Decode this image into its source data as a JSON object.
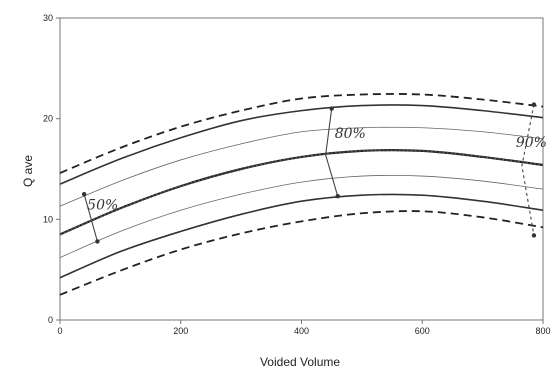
{
  "chart_data": {
    "type": "line",
    "title": "",
    "xlabel": "Voided Volume",
    "ylabel": "Q ave",
    "xlim": [
      0,
      800
    ],
    "ylim": [
      0,
      30
    ],
    "x_ticks": [
      0,
      200,
      400,
      600,
      800
    ],
    "y_ticks": [
      0,
      10,
      20,
      30
    ],
    "x_tick_labels": [
      "0",
      "200",
      "400",
      "600",
      "800"
    ],
    "y_tick_labels": [
      "0",
      "10",
      "20",
      "30"
    ],
    "grid": false,
    "series": [
      {
        "style": "dashed-thick",
        "points": [
          [
            0,
            14.6
          ],
          [
            100,
            17.1
          ],
          [
            200,
            19.2
          ],
          [
            300,
            20.8
          ],
          [
            400,
            22.0
          ],
          [
            500,
            22.4
          ],
          [
            600,
            22.4
          ],
          [
            700,
            21.9
          ],
          [
            800,
            21.2
          ]
        ]
      },
      {
        "style": "solid-thick",
        "points": [
          [
            0,
            13.5
          ],
          [
            100,
            16.0
          ],
          [
            200,
            18.1
          ],
          [
            300,
            19.8
          ],
          [
            400,
            20.8
          ],
          [
            500,
            21.3
          ],
          [
            600,
            21.3
          ],
          [
            700,
            20.8
          ],
          [
            800,
            20.1
          ]
        ]
      },
      {
        "style": "solid-thin",
        "points": [
          [
            0,
            11.3
          ],
          [
            100,
            13.8
          ],
          [
            200,
            15.9
          ],
          [
            300,
            17.5
          ],
          [
            400,
            18.7
          ],
          [
            500,
            19.1
          ],
          [
            600,
            19.1
          ],
          [
            700,
            18.7
          ],
          [
            800,
            18.0
          ]
        ]
      },
      {
        "style": "mixed-thick",
        "points": [
          [
            0,
            8.5
          ],
          [
            100,
            11.1
          ],
          [
            200,
            13.3
          ],
          [
            300,
            15.0
          ],
          [
            400,
            16.2
          ],
          [
            500,
            16.8
          ],
          [
            600,
            16.8
          ],
          [
            700,
            16.2
          ],
          [
            800,
            15.4
          ]
        ]
      },
      {
        "style": "solid-thin",
        "points": [
          [
            0,
            6.2
          ],
          [
            100,
            8.8
          ],
          [
            200,
            10.9
          ],
          [
            300,
            12.5
          ],
          [
            400,
            13.7
          ],
          [
            500,
            14.3
          ],
          [
            600,
            14.3
          ],
          [
            700,
            13.8
          ],
          [
            800,
            13.0
          ]
        ]
      },
      {
        "style": "solid-thick",
        "points": [
          [
            0,
            4.2
          ],
          [
            100,
            6.8
          ],
          [
            200,
            8.8
          ],
          [
            300,
            10.5
          ],
          [
            400,
            11.8
          ],
          [
            500,
            12.4
          ],
          [
            600,
            12.4
          ],
          [
            700,
            11.8
          ],
          [
            800,
            10.9
          ]
        ]
      },
      {
        "style": "dashed-thick",
        "points": [
          [
            0,
            2.5
          ],
          [
            100,
            4.9
          ],
          [
            200,
            7.0
          ],
          [
            300,
            8.6
          ],
          [
            400,
            9.8
          ],
          [
            500,
            10.6
          ],
          [
            600,
            10.8
          ],
          [
            700,
            10.2
          ],
          [
            800,
            9.2
          ]
        ]
      }
    ],
    "annotations": [
      {
        "text": "50%",
        "at": [
          45,
          11.0
        ],
        "bracket": [
          [
            40,
            12.5
          ],
          [
            62,
            7.8
          ]
        ]
      },
      {
        "text": "80%",
        "at": [
          455,
          18.1
        ],
        "bracket": [
          [
            450,
            21.0
          ],
          [
            440,
            16.4
          ],
          [
            460,
            12.3
          ]
        ]
      },
      {
        "text": "90%",
        "at": [
          755,
          17.2
        ],
        "bracket": [
          [
            785,
            21.4
          ],
          [
            765,
            15.3
          ],
          [
            785,
            8.4
          ]
        ]
      }
    ]
  }
}
